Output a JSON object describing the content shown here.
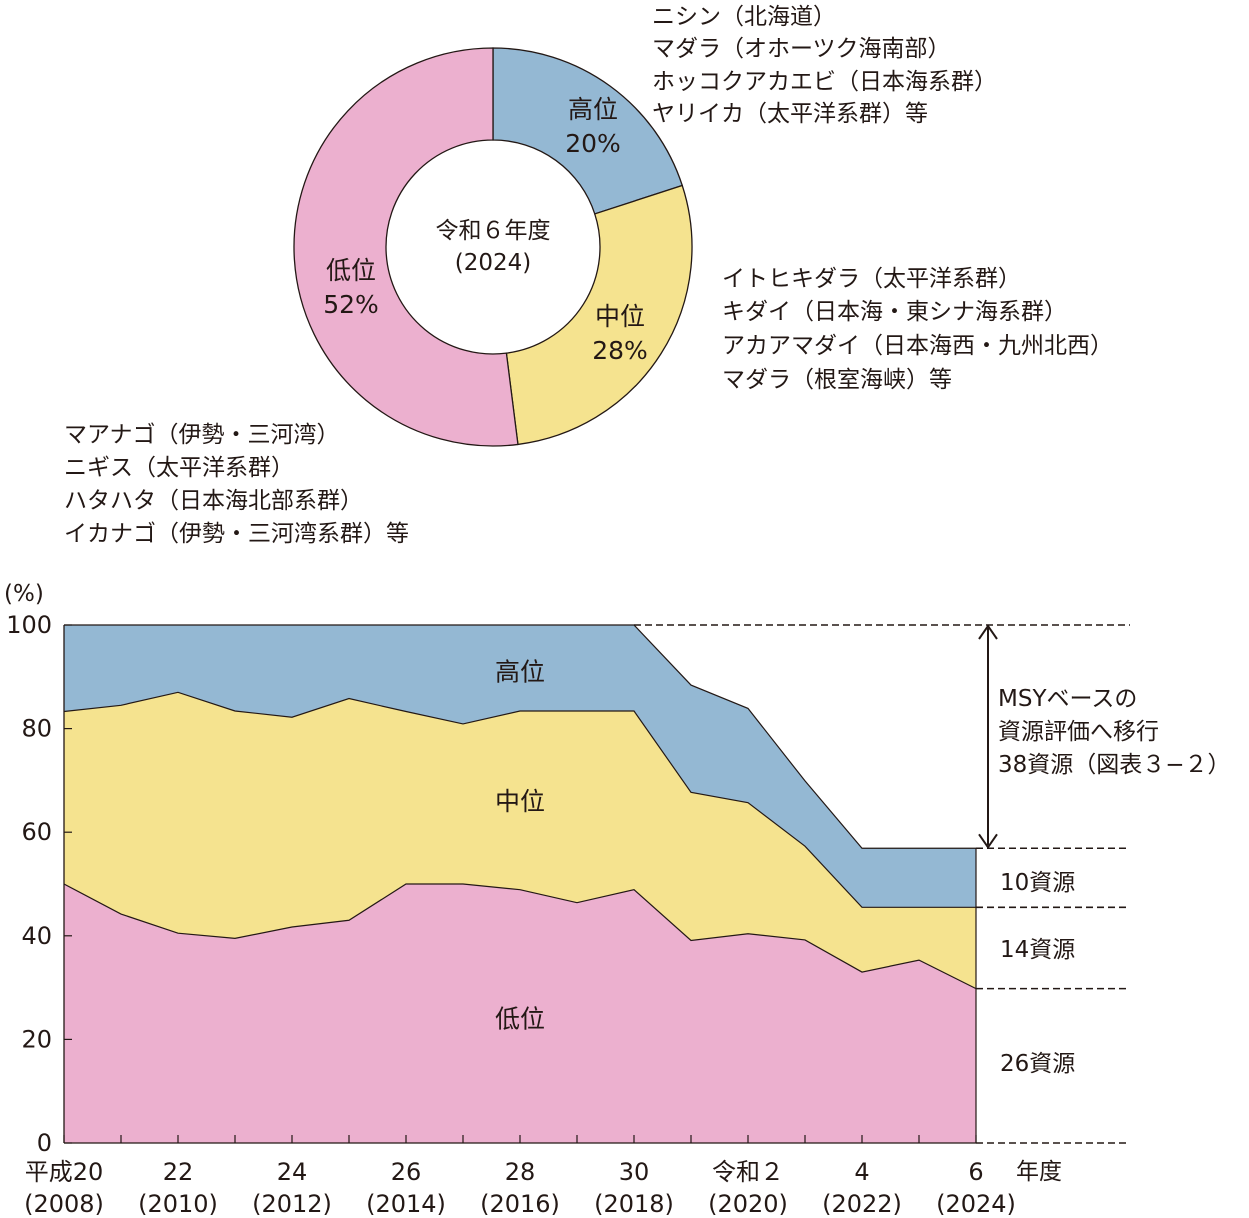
{
  "colors": {
    "high": "#94b8d3",
    "mid": "#f5e38f",
    "low": "#ecb0cf",
    "stroke": "#231815",
    "text": "#231815"
  },
  "chart_data": [
    {
      "type": "pie",
      "variant": "donut",
      "center_label": [
        "令和６年度",
        "(2024)"
      ],
      "slices": [
        {
          "name": "高位",
          "value": 20,
          "pct_label": "20%",
          "color_key": "high"
        },
        {
          "name": "中位",
          "value": 28,
          "pct_label": "28%",
          "color_key": "mid"
        },
        {
          "name": "低位",
          "value": 52,
          "pct_label": "52%",
          "color_key": "low"
        }
      ],
      "annotations": {
        "high": [
          "ニシン（北海道）",
          "マダラ（オホーツク海南部）",
          "ホッコクアカエビ（日本海系群）",
          "ヤリイカ（太平洋系群）等"
        ],
        "mid": [
          "イトヒキダラ（太平洋系群）",
          "キダイ（日本海・東シナ海系群）",
          "アカアマダイ（日本海西・九州北西）",
          "マダラ（根室海峡）等"
        ],
        "low": [
          "マアナゴ（伊勢・三河湾）",
          "ニギス（太平洋系群）",
          "ハタハタ（日本海北部系群）",
          "イカナゴ（伊勢・三河湾系群）等"
        ]
      }
    },
    {
      "type": "area",
      "stacked": true,
      "ylabel": "(%)",
      "xlabel": "年度",
      "ylim": [
        0,
        100
      ],
      "yticks": [
        0,
        20,
        40,
        60,
        80,
        100
      ],
      "x": [
        2008,
        2009,
        2010,
        2011,
        2012,
        2013,
        2014,
        2015,
        2016,
        2017,
        2018,
        2019,
        2020,
        2021,
        2022,
        2023,
        2024
      ],
      "xtick_labels": [
        {
          "x": 2008,
          "line1": "平成20",
          "line2": "(2008)"
        },
        {
          "x": 2010,
          "line1": "22",
          "line2": "(2010)"
        },
        {
          "x": 2012,
          "line1": "24",
          "line2": "(2012)"
        },
        {
          "x": 2014,
          "line1": "26",
          "line2": "(2014)"
        },
        {
          "x": 2016,
          "line1": "28",
          "line2": "(2016)"
        },
        {
          "x": 2018,
          "line1": "30",
          "line2": "(2018)"
        },
        {
          "x": 2020,
          "line1": "令和２",
          "line2": "(2020)"
        },
        {
          "x": 2022,
          "line1": "4",
          "line2": "(2022)"
        },
        {
          "x": 2024,
          "line1": "6",
          "line2": "(2024)"
        }
      ],
      "series": [
        {
          "name": "低位",
          "color_key": "low",
          "values": [
            50.0,
            44.2,
            40.5,
            39.5,
            41.7,
            43.0,
            50.0,
            50.0,
            48.9,
            46.4,
            48.9,
            39.1,
            40.4,
            39.2,
            33.0,
            35.3,
            29.8
          ]
        },
        {
          "name": "中位",
          "color_key": "mid",
          "values": [
            33.3,
            40.3,
            46.5,
            43.9,
            40.5,
            42.8,
            33.3,
            30.9,
            34.5,
            37.0,
            34.5,
            28.6,
            25.3,
            18.1,
            12.5,
            10.2,
            15.7
          ]
        },
        {
          "name": "高位",
          "color_key": "high",
          "values": [
            16.7,
            15.5,
            13.0,
            16.6,
            17.8,
            14.2,
            16.7,
            19.1,
            16.6,
            16.6,
            16.6,
            20.7,
            18.2,
            12.6,
            11.4,
            11.4,
            11.4
          ]
        }
      ],
      "series_labels": [
        {
          "name": "高位",
          "x": 2016,
          "y": 91
        },
        {
          "name": "中位",
          "x": 2016,
          "y": 66
        },
        {
          "name": "低位",
          "x": 2016,
          "y": 24
        }
      ],
      "right_annotations": {
        "msy_lines": [
          "MSYベースの",
          "資源評価へ移行",
          "38資源（図表３−２）"
        ],
        "high_count": "10資源",
        "mid_count": "14資源",
        "low_count": "26資源"
      }
    }
  ]
}
